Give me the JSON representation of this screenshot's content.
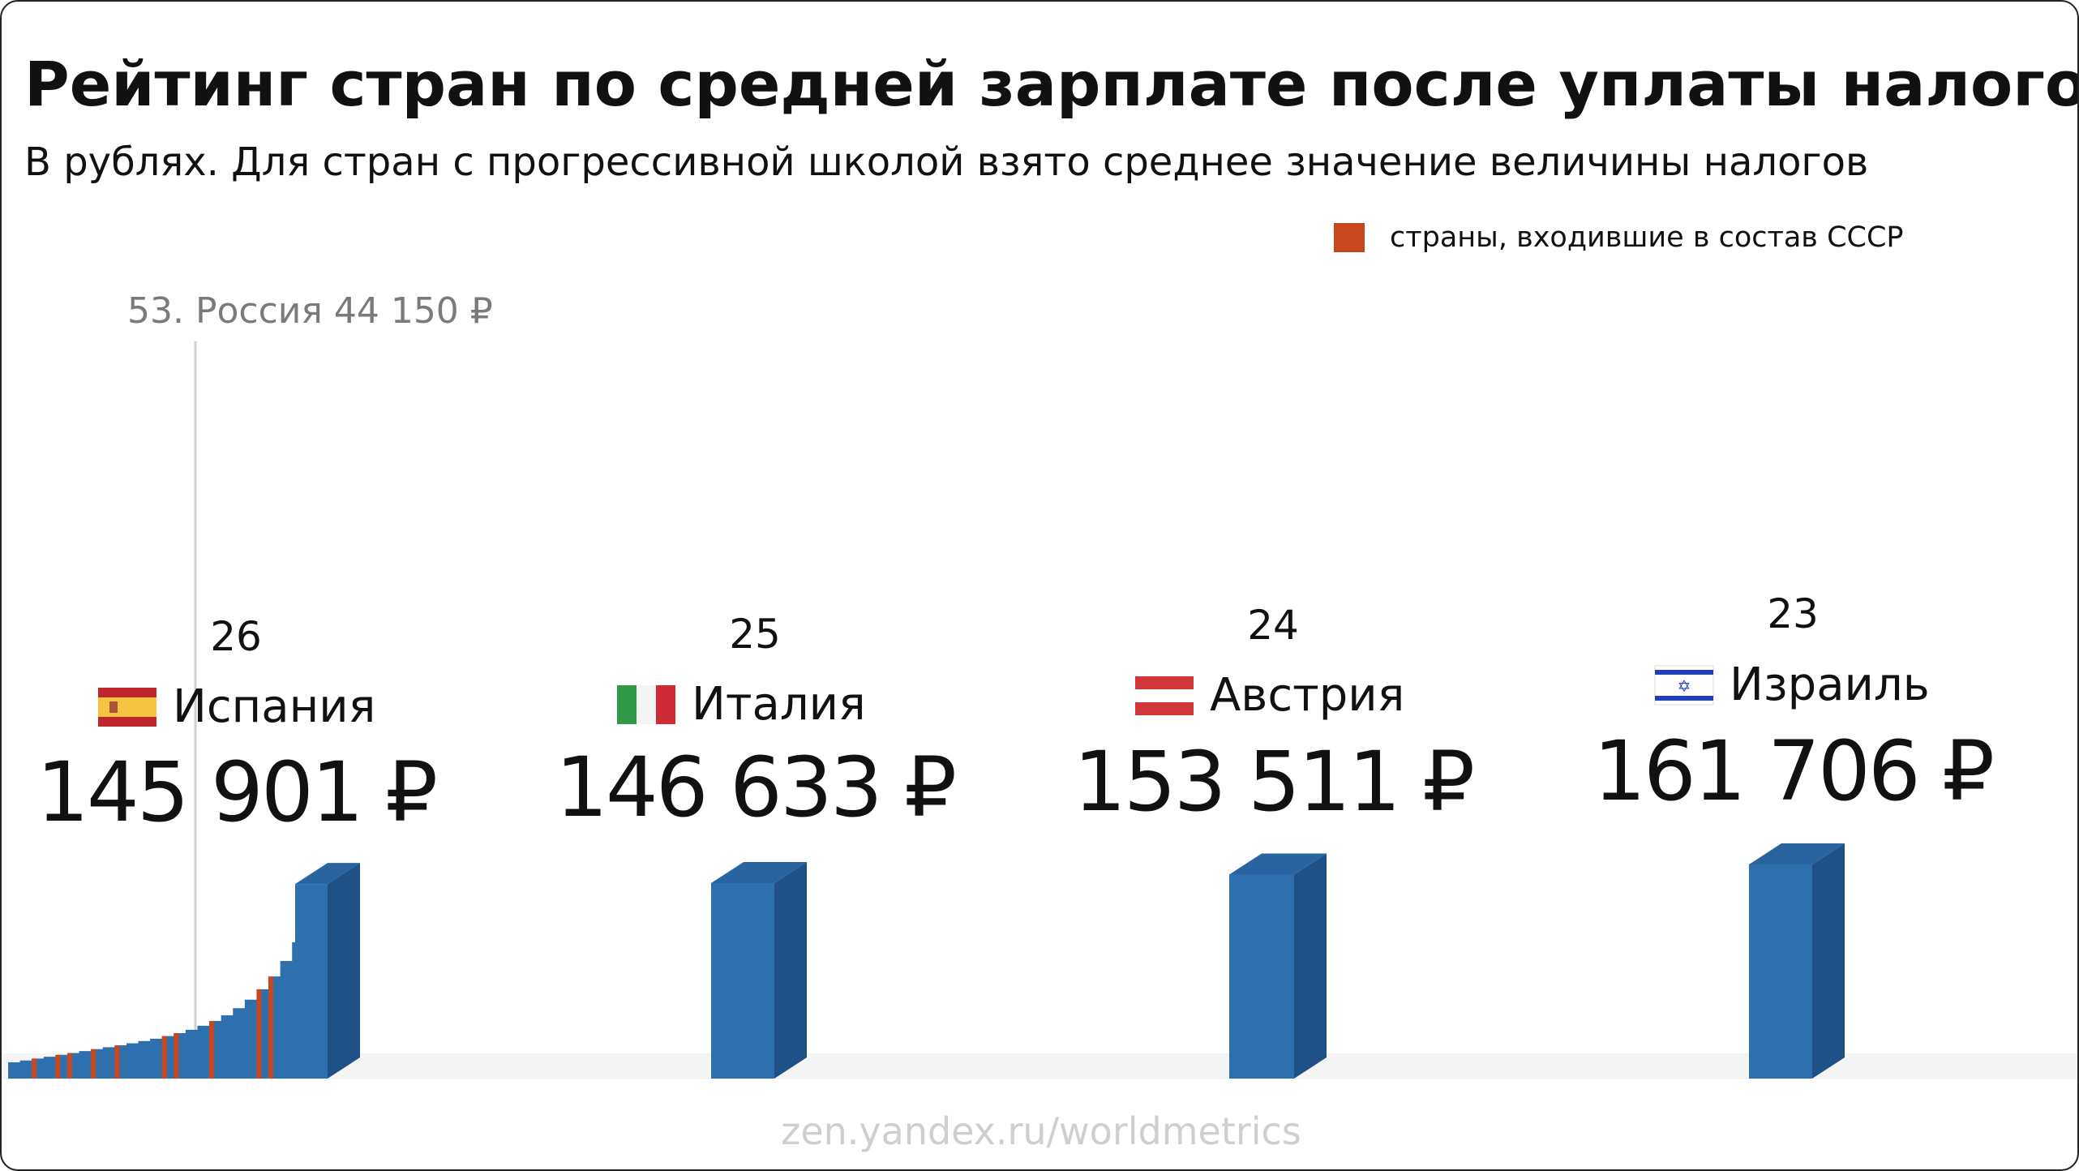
{
  "colors": {
    "bar_front": "#2e6fad",
    "bar_side": "#1f5187",
    "bar_top": "#2a64a0",
    "ussr": "#c8471f",
    "floor": "#f4f4f4"
  },
  "chart_data": {
    "type": "bar",
    "title": "Рейтинг стран по средней зарплате после уплаты налогов",
    "subtitle": "В рублях. Для стран с прогрессивной школой взято среднее значение величины налогов",
    "legend": {
      "label": "страны, входившие в состав СССР",
      "color": "#c8471f",
      "placement": "top-right"
    },
    "annotation": "53. Россия 44 150 ₽",
    "highlighted": [
      {
        "rank": "26",
        "country": "Испания",
        "flag": "spain-flag",
        "value": 145901,
        "value_label": "145 901 ₽"
      },
      {
        "rank": "25",
        "country": "Италия",
        "flag": "italy-flag",
        "value": 146633,
        "value_label": "146 633 ₽"
      },
      {
        "rank": "24",
        "country": "Австрия",
        "flag": "austria-flag",
        "value": 153511,
        "value_label": "153 511 ₽"
      },
      {
        "rank": "23",
        "country": "Израиль",
        "flag": "israel-flag",
        "value": 161706,
        "value_label": "161 706 ₽"
      }
    ],
    "grid": false
  },
  "watermark": "zen.yandex.ru/worldmetrics"
}
